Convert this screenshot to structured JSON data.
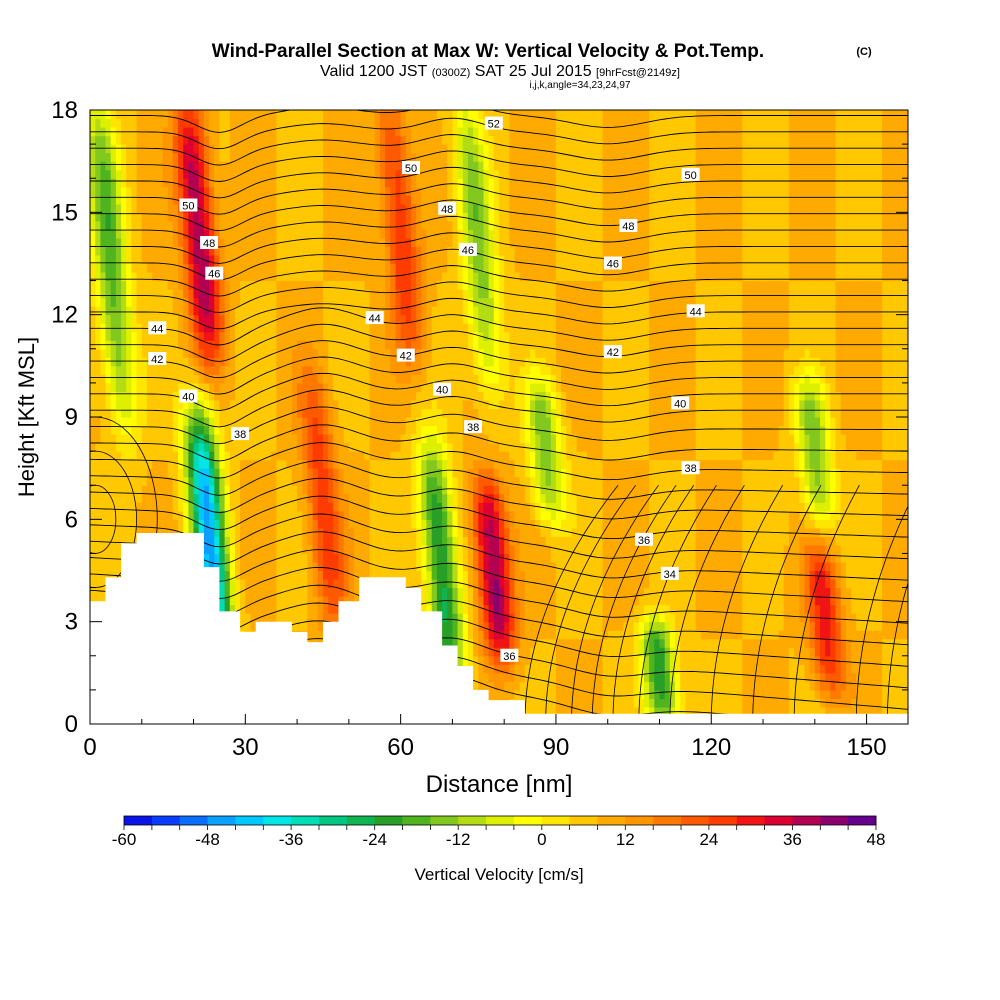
{
  "header": {
    "title": "Wind-Parallel Section at Max W: Vertical Velocity & Pot.Temp.",
    "title_mark": "(C)",
    "line2_a": "Valid 1200 JST",
    "line2_b": "(0300Z)",
    "line2_c": "SAT 25 Jul 2015",
    "line2_d": "[9hrFcst@2149z]",
    "line3": "i,j,k,angle=34,23,24,97"
  },
  "chart_data": {
    "type": "heatmap",
    "xlabel": "Distance [nm]",
    "ylabel": "Height [Kft MSL]",
    "xlim": [
      0,
      158
    ],
    "ylim": [
      0,
      18
    ],
    "xticks": [
      0,
      30,
      60,
      90,
      120,
      150
    ],
    "xtick_labels": [
      "0",
      "30",
      "60",
      "90",
      "120",
      "150"
    ],
    "yticks": [
      0,
      3,
      6,
      9,
      12,
      15,
      18
    ],
    "ytick_labels": [
      "0",
      "3",
      "6",
      "9",
      "12",
      "15",
      "18"
    ],
    "colorbar": {
      "label": "Vertical Velocity [cm/s]",
      "min": -60,
      "max": 48,
      "step": 4,
      "tick_labels": [
        "-60",
        "-48",
        "-36",
        "-24",
        "-12",
        "0",
        "12",
        "24",
        "36",
        "48"
      ],
      "colors": [
        "#0a14e6",
        "#0a3cff",
        "#0a6eff",
        "#0aa0ff",
        "#00c8ff",
        "#00e6e6",
        "#00dcb4",
        "#00c882",
        "#10b450",
        "#28a028",
        "#50b41e",
        "#82c81e",
        "#b4dc14",
        "#dcf000",
        "#ffff00",
        "#ffe600",
        "#ffc800",
        "#ffaa00",
        "#ff9600",
        "#ff7800",
        "#ff5a00",
        "#ff3c00",
        "#f01414",
        "#dc0032",
        "#b40050",
        "#8c006e",
        "#64008c"
      ]
    },
    "vertical_velocity_features": [
      {
        "x": 4,
        "z_range": [
          9,
          18
        ],
        "w": -18
      },
      {
        "x": 21,
        "z_range": [
          11,
          18
        ],
        "w": 40
      },
      {
        "x": 23,
        "z_range": [
          2,
          9
        ],
        "w": -44
      },
      {
        "x": 45,
        "z_range": [
          3,
          10
        ],
        "w": 26
      },
      {
        "x": 60,
        "z_range": [
          11,
          18
        ],
        "w": 28
      },
      {
        "x": 68,
        "z_range": [
          1,
          8
        ],
        "w": -26
      },
      {
        "x": 75,
        "z_range": [
          10,
          18
        ],
        "w": -14
      },
      {
        "x": 78,
        "z_range": [
          2,
          7
        ],
        "w": 42
      },
      {
        "x": 88,
        "z_range": [
          6,
          10
        ],
        "w": -14
      },
      {
        "x": 110,
        "z_range": [
          0,
          3
        ],
        "w": -24
      },
      {
        "x": 142,
        "z_range": [
          1,
          5
        ],
        "w": 30
      },
      {
        "x": 140,
        "z_range": [
          6,
          10
        ],
        "w": -14
      }
    ],
    "theta_contour_labels": [
      {
        "value": "52",
        "x": 78,
        "z": 17.6
      },
      {
        "value": "50",
        "x": 19,
        "z": 15.2
      },
      {
        "value": "50",
        "x": 62,
        "z": 16.3
      },
      {
        "value": "50",
        "x": 116,
        "z": 16.1
      },
      {
        "value": "48",
        "x": 23,
        "z": 14.1
      },
      {
        "value": "48",
        "x": 69,
        "z": 15.1
      },
      {
        "value": "48",
        "x": 104,
        "z": 14.6
      },
      {
        "value": "46",
        "x": 24,
        "z": 13.2
      },
      {
        "value": "46",
        "x": 73,
        "z": 13.9
      },
      {
        "value": "46",
        "x": 101,
        "z": 13.5
      },
      {
        "value": "44",
        "x": 13,
        "z": 11.6
      },
      {
        "value": "44",
        "x": 55,
        "z": 11.9
      },
      {
        "value": "44",
        "x": 117,
        "z": 12.1
      },
      {
        "value": "42",
        "x": 13,
        "z": 10.7
      },
      {
        "value": "42",
        "x": 61,
        "z": 10.8
      },
      {
        "value": "42",
        "x": 101,
        "z": 10.9
      },
      {
        "value": "40",
        "x": 19,
        "z": 9.6
      },
      {
        "value": "40",
        "x": 68,
        "z": 9.8
      },
      {
        "value": "40",
        "x": 114,
        "z": 9.4
      },
      {
        "value": "38",
        "x": 29,
        "z": 8.5
      },
      {
        "value": "38",
        "x": 74,
        "z": 8.7
      },
      {
        "value": "38",
        "x": 116,
        "z": 7.5
      },
      {
        "value": "36",
        "x": 107,
        "z": 5.4
      },
      {
        "value": "36",
        "x": 81,
        "z": 2.0
      },
      {
        "value": "34",
        "x": 112,
        "z": 4.4
      }
    ],
    "terrain": [
      [
        0,
        3.6
      ],
      [
        3,
        3.6
      ],
      [
        3,
        4.3
      ],
      [
        6,
        4.3
      ],
      [
        6,
        5.3
      ],
      [
        9,
        5.3
      ],
      [
        9,
        5.6
      ],
      [
        22,
        5.6
      ],
      [
        22,
        4.6
      ],
      [
        25,
        4.6
      ],
      [
        25,
        3.3
      ],
      [
        29,
        3.3
      ],
      [
        29,
        2.7
      ],
      [
        32,
        2.7
      ],
      [
        32,
        3.0
      ],
      [
        39,
        3.0
      ],
      [
        39,
        2.7
      ],
      [
        42,
        2.7
      ],
      [
        42,
        2.4
      ],
      [
        45,
        2.4
      ],
      [
        45,
        3.0
      ],
      [
        48,
        3.0
      ],
      [
        48,
        3.6
      ],
      [
        52,
        3.6
      ],
      [
        52,
        4.3
      ],
      [
        61,
        4.3
      ],
      [
        61,
        4.0
      ],
      [
        64,
        4.0
      ],
      [
        64,
        3.3
      ],
      [
        68,
        3.3
      ],
      [
        68,
        2.3
      ],
      [
        71,
        2.3
      ],
      [
        71,
        1.7
      ],
      [
        74,
        1.7
      ],
      [
        74,
        1.0
      ],
      [
        77,
        1.0
      ],
      [
        77,
        0.7
      ],
      [
        84,
        0.7
      ],
      [
        84,
        0.3
      ],
      [
        158,
        0.3
      ]
    ]
  }
}
